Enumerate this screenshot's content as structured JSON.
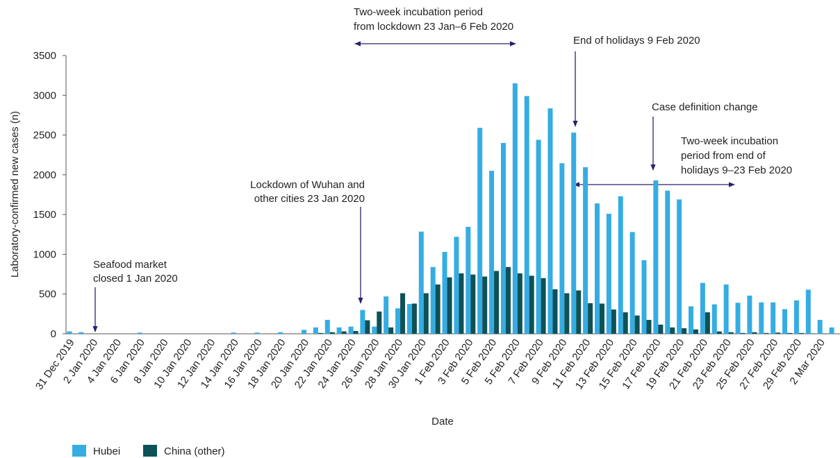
{
  "chart_data": {
    "type": "bar",
    "ylabel": "Laboratory-confirmed new cases (n)",
    "xlabel": "Date",
    "categories": [
      "31 Dec 2019",
      null,
      "2 Jan 2020",
      null,
      "4 Jan 2020",
      null,
      "6 Jan 2020",
      null,
      "8 Jan 2020",
      null,
      "10 Jan 2020",
      null,
      "12 Jan 2020",
      null,
      "14 Jan 2020",
      null,
      "16 Jan 2020",
      null,
      "18 Jan 2020",
      null,
      "20 Jan 2020",
      null,
      "22 Jan 2020",
      null,
      "24 Jan 2020",
      null,
      "26 Jan 2020",
      null,
      "28 Jan 2020",
      null,
      "30 Jan 2020",
      null,
      "1 Feb 2020",
      null,
      "3 Feb 2020",
      null,
      "5 Feb 2020",
      null,
      "5 Feb 2020",
      null,
      "7 Feb 2020",
      null,
      "9 Feb 2020",
      null,
      "11 Feb 2020",
      null,
      "13 Feb 2020",
      null,
      "15 Feb 2020",
      null,
      "17 Feb  2020",
      null,
      "19 Feb 2020",
      null,
      "21 Feb 2020",
      null,
      "23 Feb 2020",
      null,
      "25 Feb 2020",
      null,
      "27 Feb 2020",
      null,
      "29 Feb 2020",
      null,
      "2 Mar 2020",
      null
    ],
    "series": [
      {
        "name": "Hubei",
        "color": "#35ade3",
        "values": [
          30,
          20,
          0,
          0,
          0,
          0,
          15,
          0,
          0,
          0,
          0,
          0,
          0,
          0,
          15,
          0,
          15,
          0,
          20,
          0,
          50,
          80,
          175,
          80,
          90,
          300,
          90,
          470,
          320,
          375,
          1285,
          840,
          1030,
          1220,
          1345,
          2590,
          2050,
          2400,
          3150,
          2990,
          2440,
          2835,
          2145,
          2530,
          2095,
          1640,
          1510,
          1730,
          1280,
          925,
          1930,
          1800,
          1690,
          345,
          640,
          370,
          620,
          390,
          480,
          395,
          395,
          310,
          420,
          555,
          175,
          80
        ]
      },
      {
        "name": "China (other)",
        "color": "#0e5157",
        "values": [
          0,
          0,
          0,
          0,
          0,
          0,
          0,
          0,
          0,
          0,
          0,
          0,
          0,
          0,
          0,
          0,
          0,
          0,
          0,
          0,
          0,
          10,
          20,
          30,
          35,
          170,
          280,
          80,
          510,
          380,
          510,
          620,
          710,
          760,
          745,
          720,
          790,
          840,
          760,
          730,
          700,
          560,
          510,
          545,
          385,
          380,
          305,
          270,
          230,
          175,
          115,
          80,
          70,
          55,
          270,
          30,
          20,
          10,
          20,
          10,
          15,
          10,
          10,
          5,
          5,
          0
        ]
      }
    ],
    "ylim": [
      0,
      3500
    ],
    "yticks": [
      0,
      500,
      1000,
      1500,
      2000,
      2500,
      3000,
      3500
    ],
    "annotations": [
      {
        "lines": [
          "Seafood market",
          "closed 1 Jan 2020"
        ]
      },
      {
        "lines": [
          "Lockdown of Wuhan and",
          "other cities 23 Jan 2020"
        ]
      },
      {
        "lines": [
          "Two-week incubation period",
          "from lockdown 23 Jan–6 Feb 2020"
        ]
      },
      {
        "lines": [
          "End of holidays 9 Feb 2020"
        ]
      },
      {
        "lines": [
          "Case definition change"
        ]
      },
      {
        "lines": [
          "Two-week incubation",
          "period from end of",
          "holidays 9–23 Feb 2020"
        ]
      }
    ]
  }
}
